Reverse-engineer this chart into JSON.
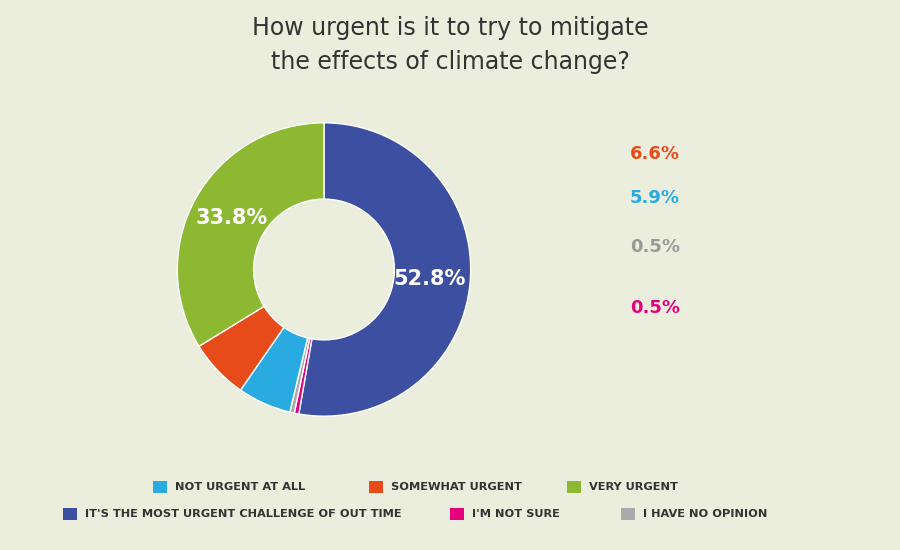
{
  "title": "How urgent is it to try to mitigate\nthe effects of climate change?",
  "title_fontsize": 17,
  "background_color": "#eceedd",
  "slices": [
    {
      "label": "IT'S THE MOST URGENT CHALLENGE OF OUT TIME",
      "value": 52.8,
      "color": "#3d4fa0",
      "text_color": "#ffffff",
      "pct": "52.8%",
      "inside": true
    },
    {
      "label": "I'M NOT SURE",
      "value": 0.5,
      "color": "#e5007d",
      "text_color": "#e5007d",
      "pct": "0.5%",
      "inside": false
    },
    {
      "label": "I HAVE NO OPINION",
      "value": 0.5,
      "color": "#aaaaaa",
      "text_color": "#999999",
      "pct": "0.5%",
      "inside": false
    },
    {
      "label": "NOT URGENT AT ALL",
      "value": 5.9,
      "color": "#29abe2",
      "text_color": "#29abe2",
      "pct": "5.9%",
      "inside": false
    },
    {
      "label": "SOMEWHAT URGENT",
      "value": 6.6,
      "color": "#e84b1a",
      "text_color": "#e84b1a",
      "pct": "6.6%",
      "inside": false
    },
    {
      "label": "VERY URGENT",
      "value": 33.8,
      "color": "#8db832",
      "text_color": "#ffffff",
      "pct": "33.8%",
      "inside": true
    }
  ],
  "legend_rows": [
    [
      {
        "label": "NOT URGENT AT ALL",
        "color": "#29abe2"
      },
      {
        "label": "SOMEWHAT URGENT",
        "color": "#e84b1a"
      },
      {
        "label": "VERY URGENT",
        "color": "#8db832"
      }
    ],
    [
      {
        "label": "IT'S THE MOST URGENT CHALLENGE OF OUT TIME",
        "color": "#3d4fa0"
      },
      {
        "label": "I'M NOT SURE",
        "color": "#e5007d"
      },
      {
        "label": "I HAVE NO OPINION",
        "color": "#aaaaaa"
      }
    ]
  ],
  "wedge_linewidth": 1.0,
  "wedge_edgecolor": "#ffffff"
}
